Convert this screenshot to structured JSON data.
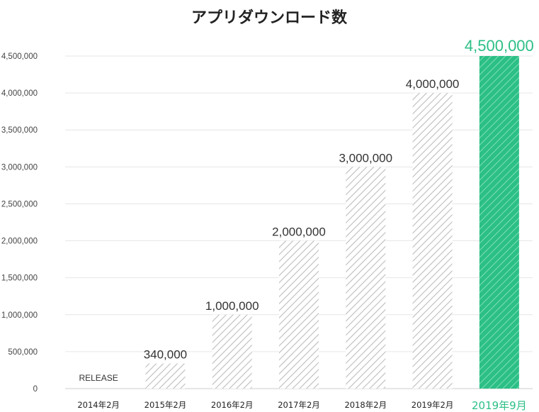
{
  "chart_data": {
    "type": "bar",
    "title": "アプリダウンロード数",
    "categories": [
      "2014年2月",
      "2015年2月",
      "2016年2月",
      "2017年2月",
      "2018年2月",
      "2019年2月",
      "2019年9月"
    ],
    "values": [
      0,
      340000,
      1000000,
      2000000,
      3000000,
      4000000,
      4500000
    ],
    "data_labels": [
      "",
      "340,000",
      "1,000,000",
      "2,000,000",
      "3,000,000",
      "4,000,000",
      "4,500,000"
    ],
    "annotations": [
      {
        "category": "2014年2月",
        "text": "RELEASE"
      }
    ],
    "highlight_category": "2019年9月",
    "ylim": [
      0,
      4500000
    ],
    "yticks": [
      0,
      500000,
      1000000,
      1500000,
      2000000,
      2500000,
      3000000,
      3500000,
      4000000,
      4500000
    ],
    "ytick_labels": [
      "0",
      "500,000",
      "1,000,000",
      "1,500,000",
      "2,000,000",
      "2,500,000",
      "3,000,000",
      "3,500,000",
      "4,000,000",
      "4,500,000"
    ],
    "xlabel": "",
    "ylabel": "",
    "grid": true,
    "bar_fill": "hatched",
    "colors": {
      "bar": "#bdbdbd",
      "highlight": "#2cbf86",
      "highlight_hatch": "#7fe0b8",
      "text": "#222222"
    }
  }
}
